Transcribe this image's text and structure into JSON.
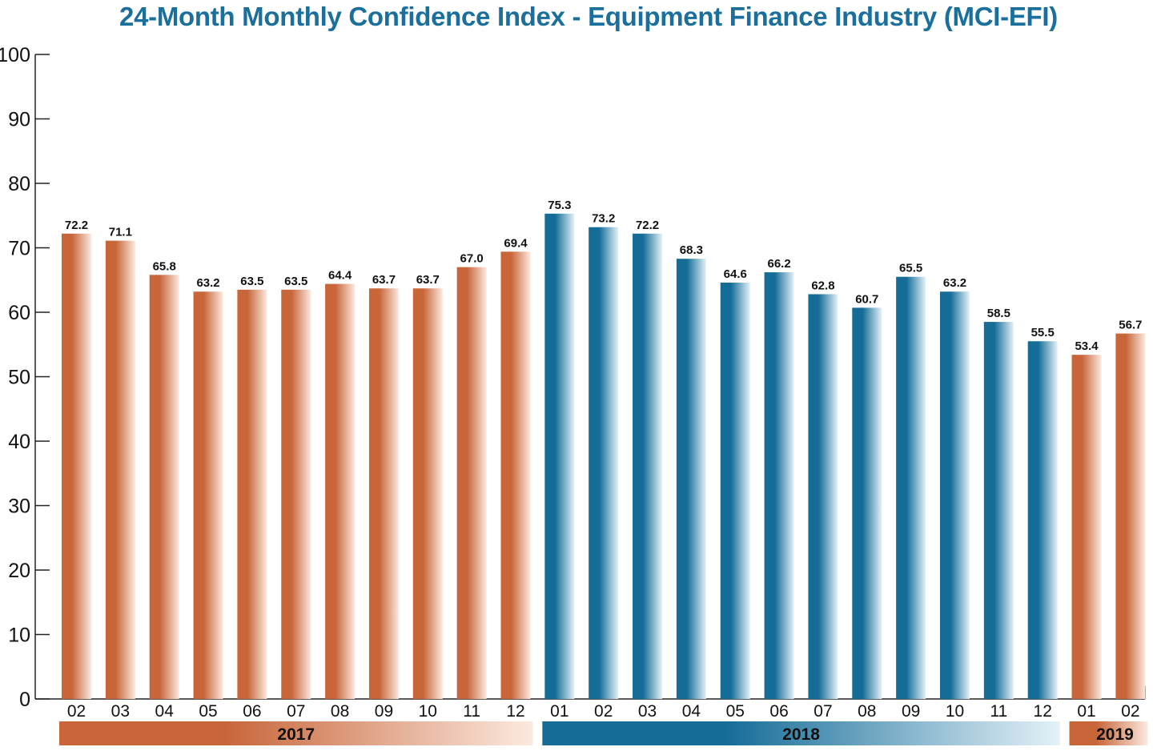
{
  "chart_data": {
    "type": "bar",
    "title": "24-Month Monthly Confidence Index - Equipment Finance Industry (MCI-EFI)",
    "categories": [
      "02",
      "03",
      "04",
      "05",
      "06",
      "07",
      "08",
      "09",
      "10",
      "11",
      "12",
      "01",
      "02",
      "03",
      "04",
      "05",
      "06",
      "07",
      "08",
      "09",
      "10",
      "11",
      "12",
      "01",
      "02"
    ],
    "values": [
      72.2,
      71.1,
      65.8,
      63.2,
      63.5,
      63.5,
      64.4,
      63.7,
      63.7,
      67.0,
      69.4,
      75.3,
      73.2,
      72.2,
      68.3,
      64.6,
      66.2,
      62.8,
      60.7,
      65.5,
      63.2,
      58.5,
      55.5,
      53.4,
      56.7
    ],
    "value_labels": [
      "72.2",
      "71.1",
      "65.8",
      "63.2",
      "63.5",
      "63.5",
      "64.4",
      "63.7",
      "63.7",
      "67.0",
      "69.4",
      "75.3",
      "73.2",
      "72.2",
      "68.3",
      "64.6",
      "66.2",
      "62.8",
      "60.7",
      "65.5",
      "63.2",
      "58.5",
      "55.5",
      "53.4",
      "56.7"
    ],
    "bar_colors": [
      "orange",
      "orange",
      "orange",
      "orange",
      "orange",
      "orange",
      "orange",
      "orange",
      "orange",
      "orange",
      "orange",
      "blue",
      "blue",
      "blue",
      "blue",
      "blue",
      "blue",
      "blue",
      "blue",
      "blue",
      "blue",
      "blue",
      "blue",
      "orange",
      "orange"
    ],
    "ylim": [
      0,
      100
    ],
    "yticks": [
      "0",
      "10",
      "20",
      "30",
      "40",
      "50",
      "60",
      "70",
      "80",
      "90",
      "100"
    ],
    "xlabel": "",
    "ylabel": "",
    "grid": false,
    "year_groups": [
      {
        "label": "2017",
        "start": 0,
        "end": 10,
        "color": "orange"
      },
      {
        "label": "2018",
        "start": 11,
        "end": 22,
        "color": "blue"
      },
      {
        "label": "2019",
        "start": 23,
        "end": 24,
        "color": "orange"
      }
    ]
  },
  "colors": {
    "title": "#1b6f9c",
    "orange": "#c8663a",
    "orange_light": "#fbe9df",
    "blue": "#146c97",
    "blue_light": "#e4f1f8"
  }
}
